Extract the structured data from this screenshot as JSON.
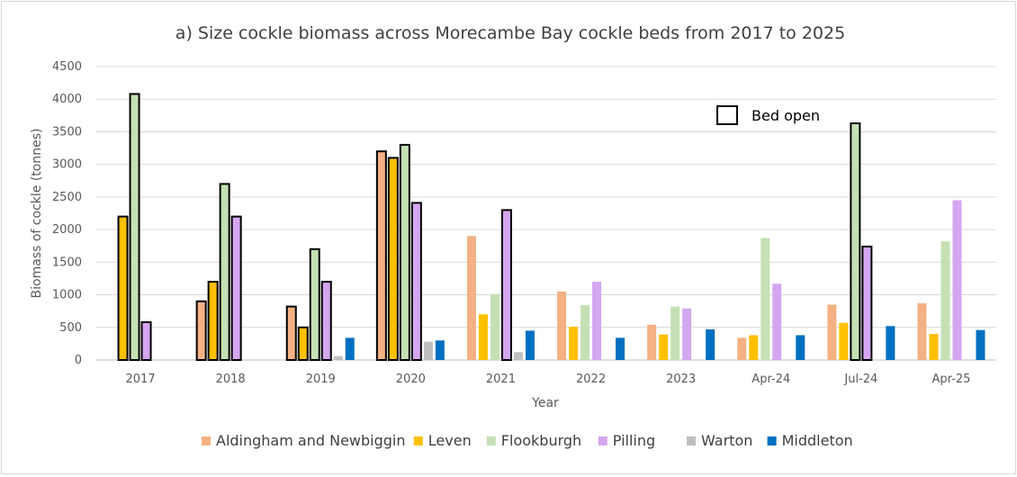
{
  "chart_data": {
    "type": "bar",
    "title": "a) Size cockle biomass across Morecambe Bay cockle beds from 2017 to 2025",
    "xlabel": "Year",
    "ylabel": "Biomass of cockle (tonnes)",
    "ylim": [
      0,
      4500
    ],
    "yticks": [
      "0",
      "500",
      "1000",
      "1500",
      "2000",
      "2500",
      "3000",
      "3500",
      "4000",
      "4500"
    ],
    "grid": true,
    "legend_position": "bottom",
    "categories": [
      "2017",
      "2018",
      "2019",
      "2020",
      "2021",
      "2022",
      "2023",
      "Apr-24",
      "Jul-24",
      "Apr-25"
    ],
    "series": [
      {
        "name": "Aldingham and Newbiggin",
        "color": "#f4b183",
        "values": [
          null,
          900,
          820,
          3200,
          1900,
          1050,
          540,
          340,
          850,
          870
        ],
        "open": [
          false,
          true,
          true,
          true,
          false,
          false,
          false,
          false,
          false,
          false
        ]
      },
      {
        "name": "Leven",
        "color": "#ffc000",
        "values": [
          2200,
          1200,
          500,
          3100,
          700,
          510,
          390,
          380,
          570,
          400
        ],
        "open": [
          true,
          true,
          true,
          true,
          false,
          false,
          false,
          false,
          false,
          false
        ]
      },
      {
        "name": "Flookburgh",
        "color": "#c5e0b4",
        "values": [
          4080,
          2700,
          1700,
          3300,
          1010,
          840,
          820,
          1870,
          3630,
          1820
        ],
        "open": [
          true,
          true,
          true,
          true,
          false,
          false,
          false,
          false,
          true,
          false
        ]
      },
      {
        "name": "Pilling",
        "color": "#d5a6f0",
        "values": [
          580,
          2200,
          1200,
          2410,
          2300,
          1200,
          790,
          1170,
          1740,
          2450
        ],
        "open": [
          true,
          true,
          true,
          true,
          true,
          false,
          false,
          false,
          true,
          false
        ]
      },
      {
        "name": "Warton",
        "color": "#bfbfbf",
        "values": [
          null,
          null,
          60,
          280,
          120,
          null,
          null,
          null,
          null,
          null
        ],
        "open": [
          false,
          false,
          false,
          false,
          false,
          false,
          false,
          false,
          false,
          false
        ]
      },
      {
        "name": "Middleton",
        "color": "#0070c0",
        "values": [
          null,
          null,
          340,
          300,
          450,
          340,
          470,
          380,
          520,
          460
        ],
        "open": [
          false,
          false,
          false,
          false,
          false,
          false,
          false,
          false,
          false,
          false
        ]
      }
    ],
    "annotation": {
      "label": "Bed open"
    }
  }
}
